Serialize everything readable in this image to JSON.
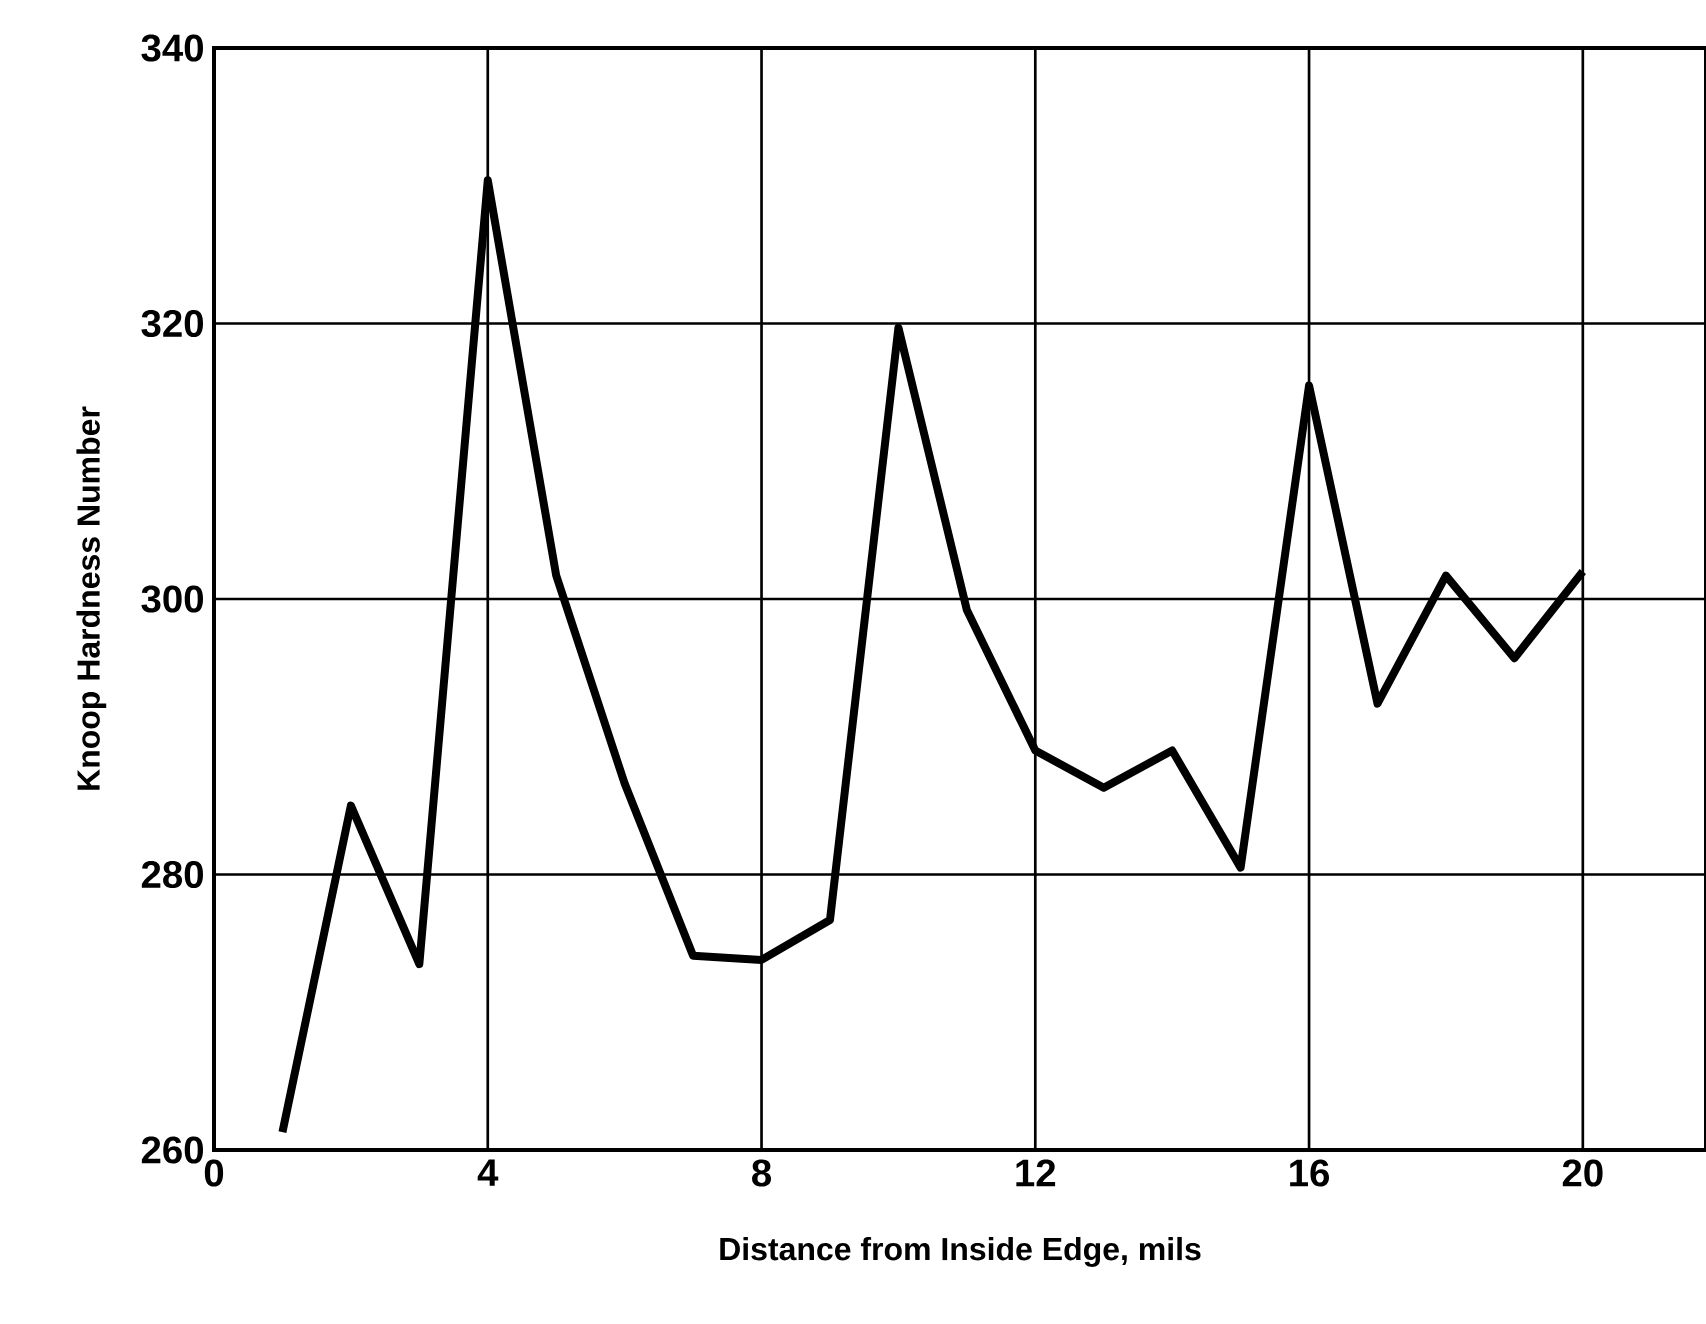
{
  "chart_data": {
    "type": "line",
    "xlabel": "Distance from Inside Edge, mils",
    "ylabel": "Knoop Hardness Number",
    "x": [
      1,
      2,
      3,
      4,
      5,
      6,
      7,
      8,
      9,
      10,
      11,
      12,
      13,
      14,
      15,
      16,
      17,
      18,
      19,
      20
    ],
    "series": [
      {
        "color": "#000000",
        "values": [
          261.3,
          285,
          273.5,
          330.4,
          301.7,
          286.6,
          274.1,
          273.8,
          276.7,
          319.7,
          299.2,
          289,
          286.3,
          289,
          280.5,
          315.5,
          292.4,
          301.7,
          295.7,
          302
        ]
      }
    ],
    "xlim": [
      0,
      21.8
    ],
    "ylim": [
      260,
      340
    ],
    "xticks": [
      0,
      4,
      8,
      12,
      16,
      20
    ],
    "yticks": [
      260,
      280,
      300,
      320,
      340
    ],
    "grid": true,
    "marker": "none",
    "line_style": "solid"
  }
}
